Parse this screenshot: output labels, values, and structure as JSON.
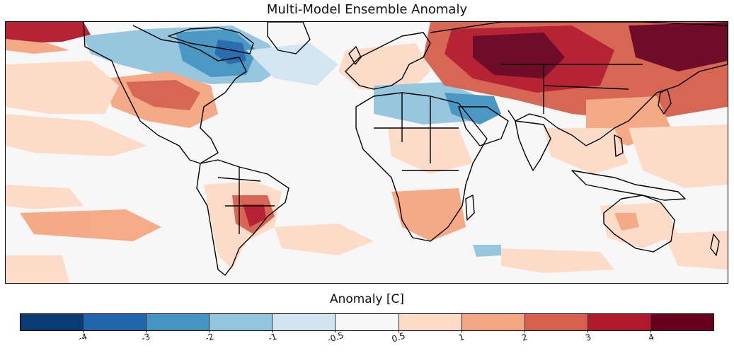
{
  "title": "Multi-Model Ensemble Anomaly",
  "colorbar": {
    "label": "Anomaly [C]",
    "ticks": [
      "-4",
      "-3",
      "-2",
      "-1",
      "-0.5",
      "0.5",
      "1",
      "2",
      "3",
      "4"
    ],
    "colors": [
      "#0b3b73",
      "#2166ac",
      "#4393c3",
      "#92c5de",
      "#d1e5f0",
      "#f7f7f7",
      "#fddbc7",
      "#f4a582",
      "#d6604d",
      "#b2182b",
      "#67001f"
    ]
  },
  "map": {
    "ocean_color": "#f7f7f7",
    "coastline_color": "#000000"
  }
}
